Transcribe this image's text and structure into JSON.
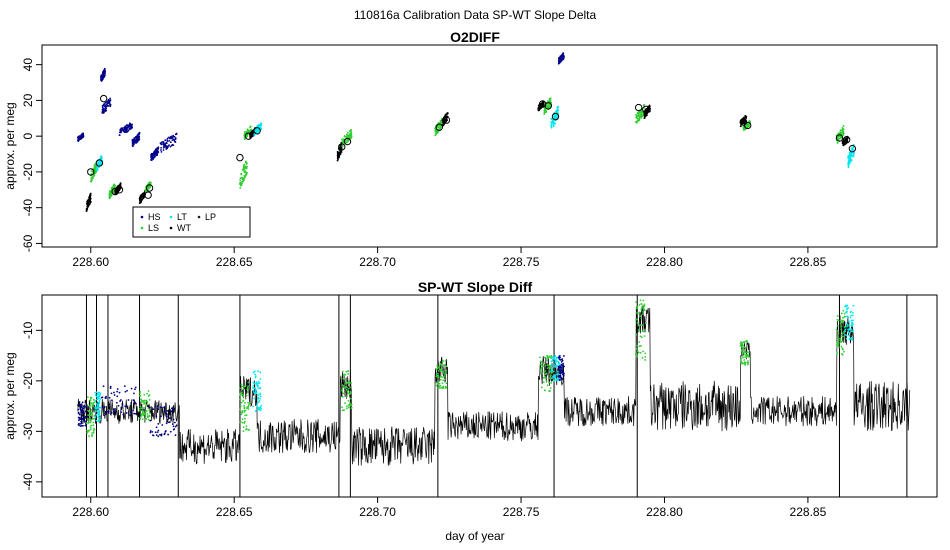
{
  "page_title": "110816a   Calibration Data SP-WT Slope Delta",
  "colors": {
    "HS": "#00008b",
    "LS": "#32cd32",
    "LT": "#00e5ee",
    "WT": "#000000",
    "LP": "#1a1a1a",
    "line": "#000000"
  },
  "chart_data": [
    {
      "type": "scatter",
      "title": "O2DIFF",
      "xlabel": "",
      "ylabel": "approx. per meg",
      "xlim": [
        228.583,
        228.895
      ],
      "ylim": [
        -62,
        51
      ],
      "xticks": [
        228.6,
        228.65,
        228.7,
        228.75,
        228.8,
        228.85
      ],
      "xtick_labels": [
        "228.60",
        "228.65",
        "228.70",
        "228.75",
        "228.80",
        "228.85"
      ],
      "yticks": [
        -60,
        -40,
        -20,
        0,
        20,
        40
      ],
      "ytick_labels": [
        "-60",
        "-40",
        "-20",
        "0",
        "20",
        "40"
      ],
      "legend": {
        "position": "bottom-left",
        "entries": [
          {
            "key": "HS",
            "label": "HS"
          },
          {
            "key": "LT",
            "label": "LT"
          },
          {
            "key": "LP",
            "label": "LP"
          },
          {
            "key": "LS",
            "label": "LS"
          },
          {
            "key": "WT",
            "label": "WT"
          }
        ]
      },
      "clusters": [
        {
          "key": "HS",
          "x": [
            228.5955,
            228.5975
          ],
          "y": [
            -3,
            2
          ]
        },
        {
          "key": "WT",
          "x": [
            228.5985,
            228.6
          ],
          "y": [
            -42,
            -32
          ]
        },
        {
          "key": "LS",
          "x": [
            228.6,
            228.602
          ],
          "y": [
            -26,
            -14
          ]
        },
        {
          "key": "LT",
          "x": [
            228.602,
            228.604
          ],
          "y": [
            -20,
            -10
          ]
        },
        {
          "key": "HS",
          "x": [
            228.6035,
            228.605
          ],
          "y": [
            30,
            38
          ]
        },
        {
          "key": "HS",
          "x": [
            228.604,
            228.607
          ],
          "y": [
            12,
            22
          ]
        },
        {
          "key": "LS",
          "x": [
            228.6065,
            228.6085
          ],
          "y": [
            -35,
            -26
          ]
        },
        {
          "key": "WT",
          "x": [
            228.6085,
            228.6105
          ],
          "y": [
            -33,
            -26
          ]
        },
        {
          "key": "HS",
          "x": [
            228.61,
            228.6145
          ],
          "y": [
            0,
            8
          ]
        },
        {
          "key": "HS",
          "x": [
            228.6145,
            228.617
          ],
          "y": [
            -6,
            2
          ]
        },
        {
          "key": "WT",
          "x": [
            228.617,
            228.619
          ],
          "y": [
            -38,
            -30
          ]
        },
        {
          "key": "LS",
          "x": [
            228.619,
            228.621
          ],
          "y": [
            -32,
            -25
          ]
        },
        {
          "key": "HS",
          "x": [
            228.621,
            228.6235
          ],
          "y": [
            -14,
            -6
          ]
        },
        {
          "key": "HS",
          "x": [
            228.6235,
            228.63
          ],
          "y": [
            -10,
            2
          ]
        },
        {
          "key": "LS",
          "x": [
            228.652,
            228.6545
          ],
          "y": [
            -30,
            -12
          ]
        },
        {
          "key": "LS",
          "x": [
            228.6535,
            228.656
          ],
          "y": [
            -2,
            6
          ]
        },
        {
          "key": "WT",
          "x": [
            228.6555,
            228.6575
          ],
          "y": [
            -2,
            5
          ]
        },
        {
          "key": "LT",
          "x": [
            228.657,
            228.6595
          ],
          "y": [
            0,
            8
          ]
        },
        {
          "key": "WT",
          "x": [
            228.686,
            228.6875
          ],
          "y": [
            -14,
            -3
          ]
        },
        {
          "key": "LS",
          "x": [
            228.6875,
            228.691
          ],
          "y": [
            -6,
            4
          ]
        },
        {
          "key": "LS",
          "x": [
            228.72,
            228.7225
          ],
          "y": [
            0,
            10
          ]
        },
        {
          "key": "WT",
          "x": [
            228.7225,
            228.7245
          ],
          "y": [
            5,
            14
          ]
        },
        {
          "key": "WT",
          "x": [
            228.756,
            228.758
          ],
          "y": [
            14,
            20
          ]
        },
        {
          "key": "LS",
          "x": [
            228.758,
            228.7605
          ],
          "y": [
            12,
            22
          ]
        },
        {
          "key": "LT",
          "x": [
            228.7605,
            228.763
          ],
          "y": [
            3,
            17
          ]
        },
        {
          "key": "HS",
          "x": [
            228.763,
            228.765
          ],
          "y": [
            40,
            47
          ]
        },
        {
          "key": "LS",
          "x": [
            228.79,
            228.793
          ],
          "y": [
            6,
            18
          ]
        },
        {
          "key": "WT",
          "x": [
            228.793,
            228.795
          ],
          "y": [
            10,
            18
          ]
        },
        {
          "key": "WT",
          "x": [
            228.8265,
            228.8285
          ],
          "y": [
            5,
            12
          ]
        },
        {
          "key": "LS",
          "x": [
            228.8275,
            228.83
          ],
          "y": [
            3,
            9
          ]
        },
        {
          "key": "LS",
          "x": [
            228.86,
            228.8625
          ],
          "y": [
            -5,
            6
          ]
        },
        {
          "key": "WT",
          "x": [
            228.862,
            228.864
          ],
          "y": [
            -6,
            0
          ]
        },
        {
          "key": "LT",
          "x": [
            228.864,
            228.866
          ],
          "y": [
            -18,
            -4
          ]
        }
      ],
      "means": [
        {
          "x": 228.6,
          "y": -20
        },
        {
          "x": 228.603,
          "y": -15
        },
        {
          "x": 228.6045,
          "y": 21
        },
        {
          "x": 228.6085,
          "y": -31
        },
        {
          "x": 228.61,
          "y": -30
        },
        {
          "x": 228.62,
          "y": -33
        },
        {
          "x": 228.6205,
          "y": -29
        },
        {
          "x": 228.652,
          "y": -12
        },
        {
          "x": 228.655,
          "y": 0
        },
        {
          "x": 228.658,
          "y": 3
        },
        {
          "x": 228.6875,
          "y": -6
        },
        {
          "x": 228.6895,
          "y": -3
        },
        {
          "x": 228.7215,
          "y": 5
        },
        {
          "x": 228.724,
          "y": 9
        },
        {
          "x": 228.7575,
          "y": 18
        },
        {
          "x": 228.7595,
          "y": 17
        },
        {
          "x": 228.762,
          "y": 11
        },
        {
          "x": 228.791,
          "y": 16
        },
        {
          "x": 228.7935,
          "y": 15
        },
        {
          "x": 228.8275,
          "y": 8
        },
        {
          "x": 228.829,
          "y": 6
        },
        {
          "x": 228.861,
          "y": -1
        },
        {
          "x": 228.8635,
          "y": -2
        },
        {
          "x": 228.8655,
          "y": -7
        }
      ]
    },
    {
      "type": "line",
      "title": "SP-WT Slope Diff",
      "xlabel": "day of year",
      "ylabel": "approx. per meg",
      "xlim": [
        228.583,
        228.895
      ],
      "ylim": [
        -43,
        -3
      ],
      "xticks": [
        228.6,
        228.65,
        228.7,
        228.75,
        228.8,
        228.85
      ],
      "xtick_labels": [
        "228.60",
        "228.65",
        "228.70",
        "228.75",
        "228.80",
        "228.85"
      ],
      "yticks": [
        -40,
        -30,
        -20,
        -10
      ],
      "ytick_labels": [
        "-40",
        "-30",
        "-20",
        "-10"
      ],
      "x_start": 228.5955,
      "x_end": 228.8855,
      "segments": [
        {
          "x": [
            228.5955,
            228.631
          ],
          "mean": -26,
          "noise": 2.5
        },
        {
          "x": [
            228.631,
            228.652
          ],
          "mean": -33,
          "noise": 3.5
        },
        {
          "x": [
            228.652,
            228.658
          ],
          "mean": -22,
          "noise": 3
        },
        {
          "x": [
            228.658,
            228.687
          ],
          "mean": -31,
          "noise": 3.5
        },
        {
          "x": [
            228.687,
            228.691
          ],
          "mean": -21,
          "noise": 3
        },
        {
          "x": [
            228.691,
            228.72
          ],
          "mean": -33,
          "noise": 4
        },
        {
          "x": [
            228.72,
            228.7245
          ],
          "mean": -18,
          "noise": 3
        },
        {
          "x": [
            228.7245,
            228.756
          ],
          "mean": -29,
          "noise": 3
        },
        {
          "x": [
            228.756,
            228.765
          ],
          "mean": -18,
          "noise": 3
        },
        {
          "x": [
            228.765,
            228.79
          ],
          "mean": -26,
          "noise": 3
        },
        {
          "x": [
            228.79,
            228.795
          ],
          "mean": -8,
          "noise": 3
        },
        {
          "x": [
            228.795,
            228.8265
          ],
          "mean": -25,
          "noise": 5
        },
        {
          "x": [
            228.8265,
            228.83
          ],
          "mean": -14,
          "noise": 2
        },
        {
          "x": [
            228.83,
            228.86
          ],
          "mean": -26,
          "noise": 3
        },
        {
          "x": [
            228.86,
            228.866
          ],
          "mean": -10,
          "noise": 3
        },
        {
          "x": [
            228.866,
            228.8855
          ],
          "mean": -25,
          "noise": 5
        }
      ],
      "spikes": [
        228.5985,
        228.602,
        228.606,
        228.617,
        228.6305,
        228.652,
        228.6865,
        228.6905,
        228.721,
        228.7615,
        228.7905,
        228.861,
        228.8845
      ],
      "colored_overlays": [
        {
          "key": "HS",
          "x": [
            228.5955,
            228.5985
          ],
          "y": [
            -29,
            -24
          ]
        },
        {
          "key": "LS",
          "x": [
            228.5985,
            228.6015
          ],
          "y": [
            -31,
            -23
          ]
        },
        {
          "key": "LT",
          "x": [
            228.6015,
            228.6035
          ],
          "y": [
            -28,
            -22
          ]
        },
        {
          "key": "HS",
          "x": [
            228.6035,
            228.616
          ],
          "y": [
            -27,
            -21
          ]
        },
        {
          "key": "LS",
          "x": [
            228.617,
            228.6205
          ],
          "y": [
            -28,
            -22
          ]
        },
        {
          "key": "HS",
          "x": [
            228.6205,
            228.63
          ],
          "y": [
            -31,
            -25
          ]
        },
        {
          "key": "LS",
          "x": [
            228.652,
            228.6555
          ],
          "y": [
            -30,
            -20
          ]
        },
        {
          "key": "LT",
          "x": [
            228.6565,
            228.6595
          ],
          "y": [
            -26,
            -18
          ]
        },
        {
          "key": "LS",
          "x": [
            228.6875,
            228.691
          ],
          "y": [
            -26,
            -18
          ]
        },
        {
          "key": "LS",
          "x": [
            228.7205,
            228.724
          ],
          "y": [
            -22,
            -16
          ]
        },
        {
          "key": "LS",
          "x": [
            228.7565,
            228.761
          ],
          "y": [
            -22,
            -15
          ]
        },
        {
          "key": "LT",
          "x": [
            228.7605,
            228.7635
          ],
          "y": [
            -20,
            -15
          ]
        },
        {
          "key": "HS",
          "x": [
            228.763,
            228.765
          ],
          "y": [
            -20,
            -15
          ]
        },
        {
          "key": "LS",
          "x": [
            228.79,
            228.7935
          ],
          "y": [
            -16,
            -4
          ]
        },
        {
          "key": "LS",
          "x": [
            228.8265,
            228.8295
          ],
          "y": [
            -17,
            -12
          ]
        },
        {
          "key": "LS",
          "x": [
            228.86,
            228.863
          ],
          "y": [
            -15,
            -6
          ]
        },
        {
          "key": "LT",
          "x": [
            228.863,
            228.866
          ],
          "y": [
            -12,
            -5
          ]
        }
      ]
    }
  ]
}
